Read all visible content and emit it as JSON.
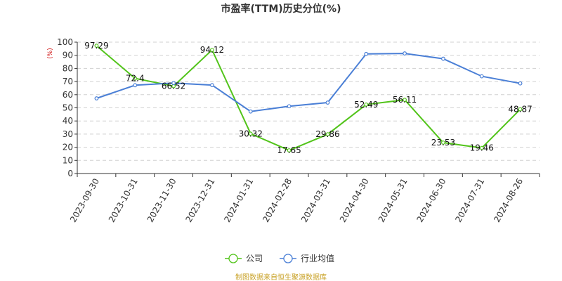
{
  "chart_data": {
    "type": "line",
    "title": "市盈率(TTM)历史分位(%)",
    "ylabel": "(%)",
    "ylim": [
      0,
      100
    ],
    "yticks": [
      0,
      10,
      20,
      30,
      40,
      50,
      60,
      70,
      80,
      90,
      100
    ],
    "grid": true,
    "legend_position": "bottom",
    "categories": [
      "2023-09-30",
      "2023-10-31",
      "2023-11-30",
      "2023-12-31",
      "2024-01-31",
      "2024-02-28",
      "2024-03-31",
      "2024-04-30",
      "2024-05-31",
      "2024-06-30",
      "2024-07-31",
      "2024-08-26"
    ],
    "series": [
      {
        "name": "公司",
        "color": "#52c41a",
        "values": [
          97.29,
          72.4,
          66.52,
          94.12,
          30.32,
          17.65,
          29.86,
          52.49,
          56.11,
          23.53,
          19.46,
          48.87
        ],
        "labels": [
          "97.29",
          "72.4",
          "66.52",
          "94.12",
          "30.32",
          "17.65",
          "29.86",
          "52.49",
          "56.11",
          "23.53",
          "19.46",
          "48.87"
        ]
      },
      {
        "name": "行业均值",
        "color": "#4a7fd6",
        "values": [
          57.2,
          67.2,
          68.8,
          67.3,
          47.2,
          51.2,
          54.0,
          91.0,
          91.4,
          87.4,
          74.0,
          68.6
        ]
      }
    ],
    "source": "制图数据来自恒生聚源数据库"
  }
}
